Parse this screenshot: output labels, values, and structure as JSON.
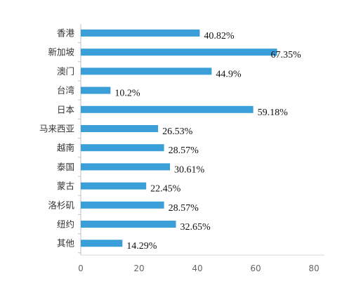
{
  "chart_data": {
    "type": "bar",
    "orientation": "horizontal",
    "categories": [
      "香港",
      "新加坡",
      "澳门",
      "台湾",
      "日本",
      "马来西亚",
      "越南",
      "泰国",
      "蒙古",
      "洛杉矶",
      "纽约",
      "其他"
    ],
    "values": [
      40.82,
      67.35,
      44.9,
      10.2,
      59.18,
      26.53,
      28.57,
      30.61,
      22.45,
      28.57,
      32.65,
      14.29
    ],
    "value_labels": [
      "40.82%",
      "67.35%",
      "44.9%",
      "10.2%",
      "59.18%",
      "26.53%",
      "28.57%",
      "30.61%",
      "22.45%",
      "28.57%",
      "32.65%",
      "14.29%"
    ],
    "xlim": [
      0,
      80
    ],
    "x_ticks": [
      "0",
      "20",
      "40",
      "60",
      "80"
    ],
    "grid": false,
    "bar_color": "#3a9ed8",
    "title": "",
    "xlabel": "",
    "ylabel": ""
  }
}
